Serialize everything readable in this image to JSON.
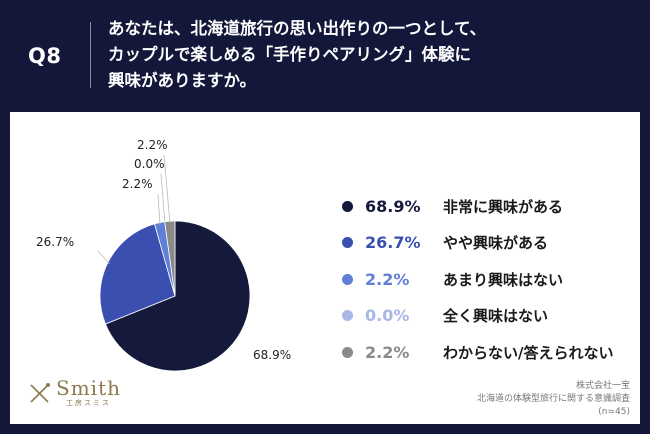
{
  "header": {
    "question_id": "Q8",
    "question_lines": [
      "あなたは、北海道旅行の思い出作りの一つとして、",
      "カップルで楽しめる「手作りペアリング」体験に",
      "興味がありますか。"
    ]
  },
  "chart_data": {
    "type": "pie",
    "slices": [
      {
        "label": "非常に興味がある",
        "value": 68.9,
        "display": "68.9%",
        "color": "#151a3c"
      },
      {
        "label": "やや興味がある",
        "value": 26.7,
        "display": "26.7%",
        "color": "#3a4fb0"
      },
      {
        "label": "あまり興味はない",
        "value": 2.2,
        "display": "2.2%",
        "color": "#5f7fd8"
      },
      {
        "label": "全く興味はない",
        "value": 0.0,
        "display": "0.0%",
        "color": "#a9b6e8"
      },
      {
        "label": "わからない/答えられない",
        "value": 2.2,
        "display": "2.2%",
        "color": "#8a8a8a"
      }
    ],
    "start_angle_deg": 0,
    "direction": "clockwise",
    "legend_position": "right"
  },
  "logo": {
    "name": "Smith",
    "sub": "工房スミス"
  },
  "source": {
    "company": "株式会社一宝",
    "survey": "北海道の体験型旅行に関する意識調査",
    "n": "(n=45)"
  }
}
